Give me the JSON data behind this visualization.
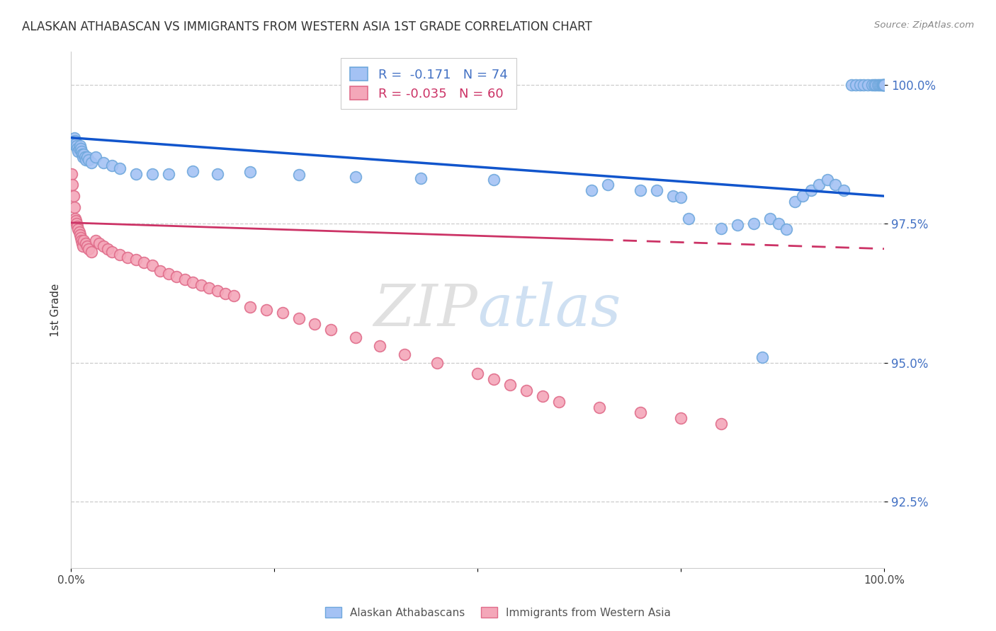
{
  "title": "ALASKAN ATHABASCAN VS IMMIGRANTS FROM WESTERN ASIA 1ST GRADE CORRELATION CHART",
  "source": "Source: ZipAtlas.com",
  "ylabel": "1st Grade",
  "blue_R": "-0.171",
  "blue_N": "74",
  "pink_R": "-0.035",
  "pink_N": "60",
  "blue_dot_color": "#a4c2f4",
  "blue_dot_edge": "#6fa8dc",
  "pink_dot_color": "#f4a7b9",
  "pink_dot_edge": "#e06c8a",
  "blue_line_color": "#1155cc",
  "pink_line_color": "#cc3366",
  "legend_blue_label": "Alaskan Athabascans",
  "legend_pink_label": "Immigrants from Western Asia",
  "xmin": 0.0,
  "xmax": 1.0,
  "ymin": 0.913,
  "ymax": 1.006,
  "yticks": [
    0.925,
    0.95,
    0.975,
    1.0
  ],
  "ytick_labels": [
    "92.5%",
    "95.0%",
    "97.5%",
    "100.0%"
  ],
  "blue_trend_y0": 0.9905,
  "blue_trend_y1": 0.98,
  "pink_trend_y0": 0.9752,
  "pink_trend_y1": 0.9705,
  "blue_x": [
    0.001,
    0.002,
    0.003,
    0.004,
    0.005,
    0.006,
    0.007,
    0.008,
    0.009,
    0.01,
    0.011,
    0.012,
    0.013,
    0.014,
    0.015,
    0.016,
    0.017,
    0.018,
    0.02,
    0.022,
    0.025,
    0.03,
    0.04,
    0.05,
    0.06,
    0.08,
    0.1,
    0.12,
    0.15,
    0.18,
    0.22,
    0.28,
    0.35,
    0.43,
    0.52,
    0.64,
    0.66,
    0.7,
    0.72,
    0.74,
    0.75,
    0.76,
    0.8,
    0.82,
    0.84,
    0.85,
    0.86,
    0.87,
    0.88,
    0.89,
    0.9,
    0.91,
    0.92,
    0.93,
    0.94,
    0.95,
    0.96,
    0.965,
    0.97,
    0.975,
    0.98,
    0.985,
    0.988,
    0.99,
    0.992,
    0.994,
    0.996,
    0.997,
    0.998,
    0.999,
    0.9993,
    0.9996,
    0.9998,
    1.0
  ],
  "blue_y": [
    0.9895,
    0.99,
    0.9895,
    0.9905,
    0.99,
    0.9895,
    0.989,
    0.9885,
    0.988,
    0.9885,
    0.989,
    0.9885,
    0.988,
    0.9875,
    0.987,
    0.9875,
    0.987,
    0.9865,
    0.987,
    0.9865,
    0.986,
    0.987,
    0.986,
    0.9855,
    0.985,
    0.984,
    0.984,
    0.984,
    0.9845,
    0.984,
    0.9843,
    0.9838,
    0.9835,
    0.9832,
    0.983,
    0.981,
    0.982,
    0.981,
    0.981,
    0.98,
    0.9797,
    0.976,
    0.9742,
    0.9748,
    0.975,
    0.951,
    0.976,
    0.975,
    0.974,
    0.979,
    0.98,
    0.981,
    0.982,
    0.983,
    0.982,
    0.981,
    1.0,
    1.0,
    1.0,
    1.0,
    1.0,
    1.0,
    1.0,
    1.0,
    1.0,
    1.0,
    1.0,
    1.0,
    1.0,
    1.0,
    1.0,
    1.0,
    1.0,
    1.0
  ],
  "pink_x": [
    0.001,
    0.002,
    0.003,
    0.004,
    0.005,
    0.006,
    0.007,
    0.008,
    0.009,
    0.01,
    0.011,
    0.012,
    0.013,
    0.014,
    0.015,
    0.016,
    0.018,
    0.02,
    0.022,
    0.025,
    0.03,
    0.035,
    0.04,
    0.045,
    0.05,
    0.06,
    0.07,
    0.08,
    0.09,
    0.1,
    0.11,
    0.12,
    0.13,
    0.14,
    0.15,
    0.16,
    0.17,
    0.18,
    0.19,
    0.2,
    0.22,
    0.24,
    0.26,
    0.28,
    0.3,
    0.32,
    0.35,
    0.38,
    0.41,
    0.45,
    0.5,
    0.52,
    0.54,
    0.56,
    0.58,
    0.6,
    0.65,
    0.7,
    0.75,
    0.8
  ],
  "pink_y": [
    0.984,
    0.982,
    0.98,
    0.978,
    0.976,
    0.9755,
    0.975,
    0.9745,
    0.974,
    0.9735,
    0.973,
    0.9725,
    0.972,
    0.9715,
    0.971,
    0.972,
    0.9715,
    0.971,
    0.9705,
    0.97,
    0.972,
    0.9715,
    0.971,
    0.9705,
    0.97,
    0.9695,
    0.969,
    0.9685,
    0.968,
    0.9675,
    0.9665,
    0.966,
    0.9655,
    0.965,
    0.9645,
    0.964,
    0.9635,
    0.963,
    0.9625,
    0.962,
    0.96,
    0.9595,
    0.959,
    0.958,
    0.957,
    0.956,
    0.9545,
    0.953,
    0.9515,
    0.95,
    0.948,
    0.947,
    0.946,
    0.945,
    0.944,
    0.943,
    0.942,
    0.941,
    0.94,
    0.939
  ]
}
